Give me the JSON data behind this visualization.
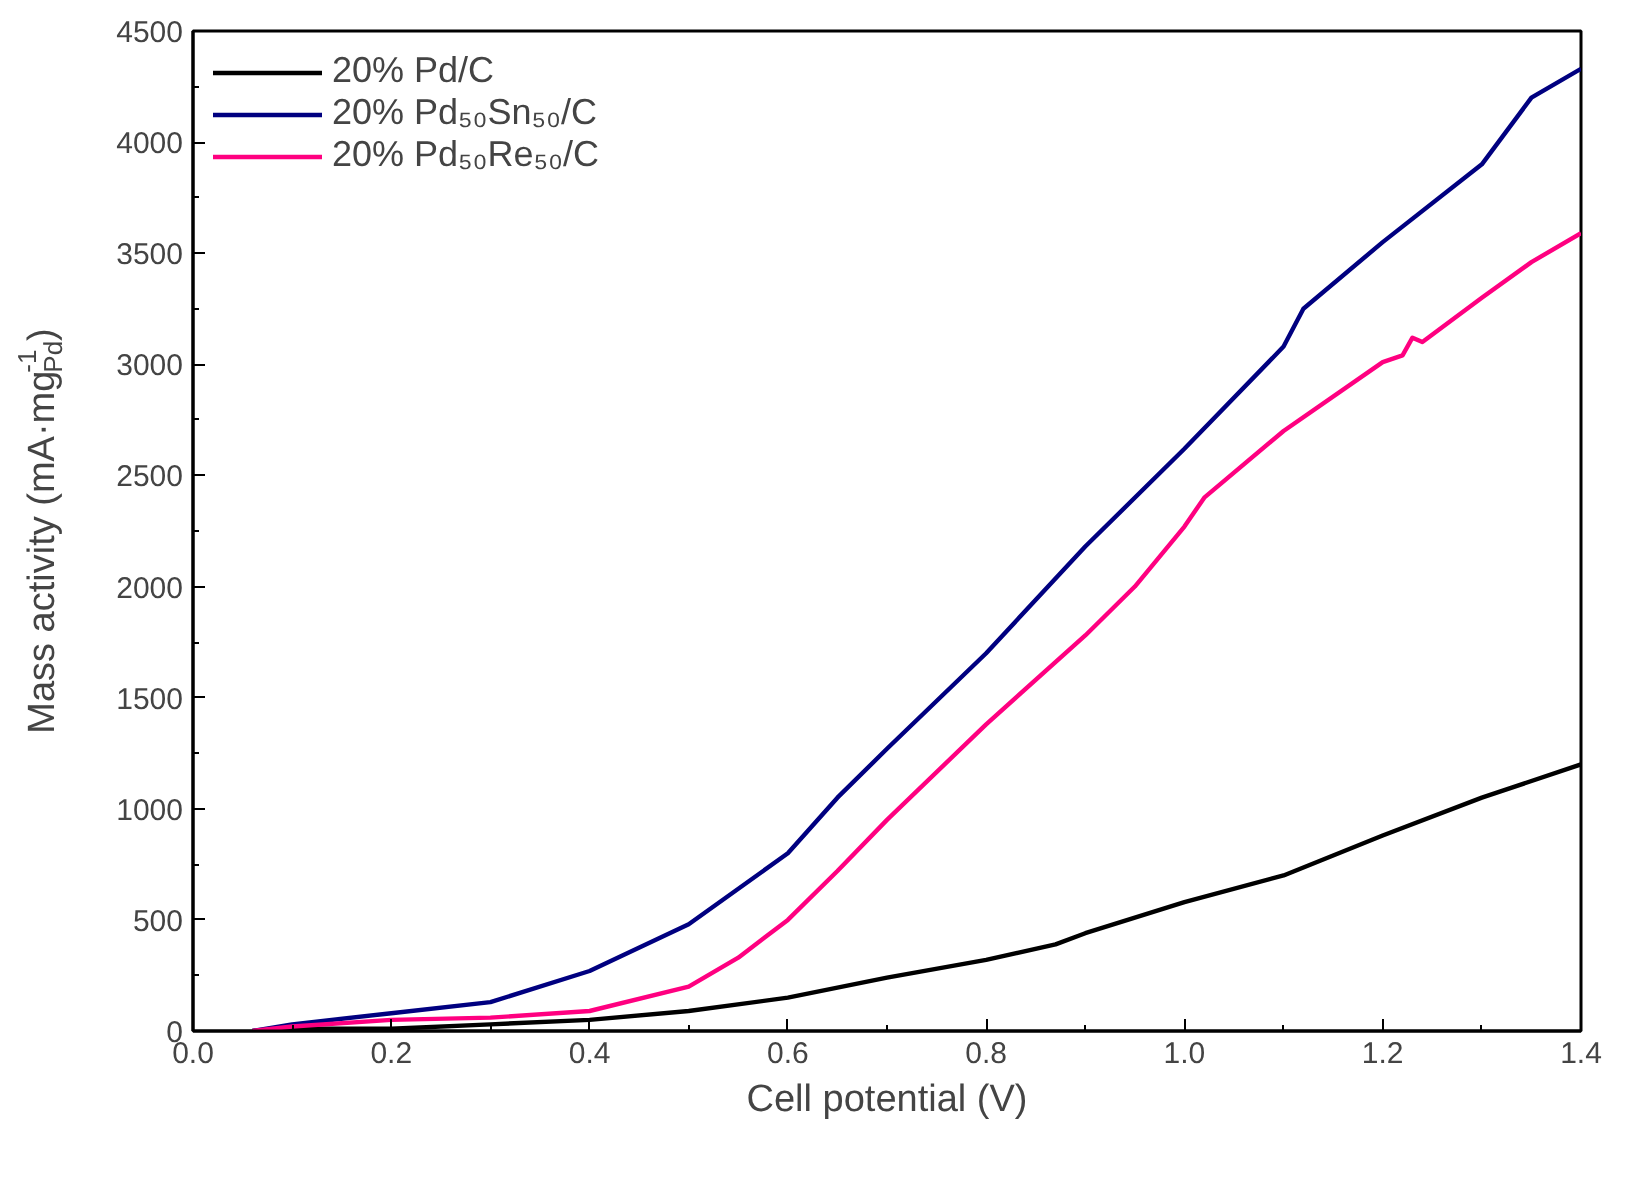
{
  "chart_data": {
    "type": "line",
    "xlabel": "Cell potential (V)",
    "ylabel": "Mass activity (mA·mg$_{Pd}$$^{-1}$)",
    "xlim": [
      0.0,
      1.4
    ],
    "ylim": [
      0,
      4500
    ],
    "xticks": [
      {
        "value": 0,
        "label": "0.0"
      },
      0.2,
      0.4,
      0.6,
      0.8,
      {
        "value": 1,
        "label": "1.0"
      },
      1.2,
      1.4
    ],
    "yticks": [
      0,
      500,
      1000,
      1500,
      2000,
      2500,
      3000,
      3500,
      4000,
      4500
    ],
    "grid": false,
    "legend": "top left",
    "line_style": "solid",
    "marker": "none",
    "series": [
      {
        "name": "20% Pd/C",
        "color": "#000000",
        "x": [
          0.06,
          0.1,
          0.2,
          0.3,
          0.4,
          0.5,
          0.6,
          0.7,
          0.8,
          0.87,
          0.9,
          1.0,
          1.1,
          1.2,
          1.3,
          1.4
        ],
        "values": [
          0,
          10,
          10,
          30,
          50,
          90,
          150,
          240,
          320,
          390,
          440,
          580,
          700,
          880,
          1050,
          1200
        ]
      },
      {
        "name": "20% Pd₅₀Sn₅₀/C",
        "color": "#000080",
        "x": [
          0.06,
          0.1,
          0.2,
          0.3,
          0.4,
          0.5,
          0.6,
          0.65,
          0.7,
          0.8,
          0.9,
          1.0,
          1.1,
          1.12,
          1.2,
          1.3,
          1.35,
          1.4
        ],
        "values": [
          0,
          30,
          80,
          130,
          270,
          480,
          800,
          1050,
          1270,
          1700,
          2180,
          2620,
          3080,
          3250,
          3550,
          3900,
          4200,
          4330
        ]
      },
      {
        "name": "20% Pd₅₀Re₅₀/C",
        "color": "#ff0080",
        "x": [
          0.06,
          0.1,
          0.2,
          0.3,
          0.4,
          0.5,
          0.55,
          0.6,
          0.65,
          0.7,
          0.8,
          0.9,
          0.95,
          1.0,
          1.02,
          1.1,
          1.2,
          1.22,
          1.23,
          1.24,
          1.3,
          1.35,
          1.4
        ],
        "values": [
          0,
          20,
          50,
          60,
          90,
          200,
          330,
          500,
          720,
          950,
          1380,
          1780,
          2000,
          2270,
          2400,
          2700,
          3010,
          3040,
          3120,
          3100,
          3300,
          3460,
          3590
        ]
      }
    ]
  }
}
